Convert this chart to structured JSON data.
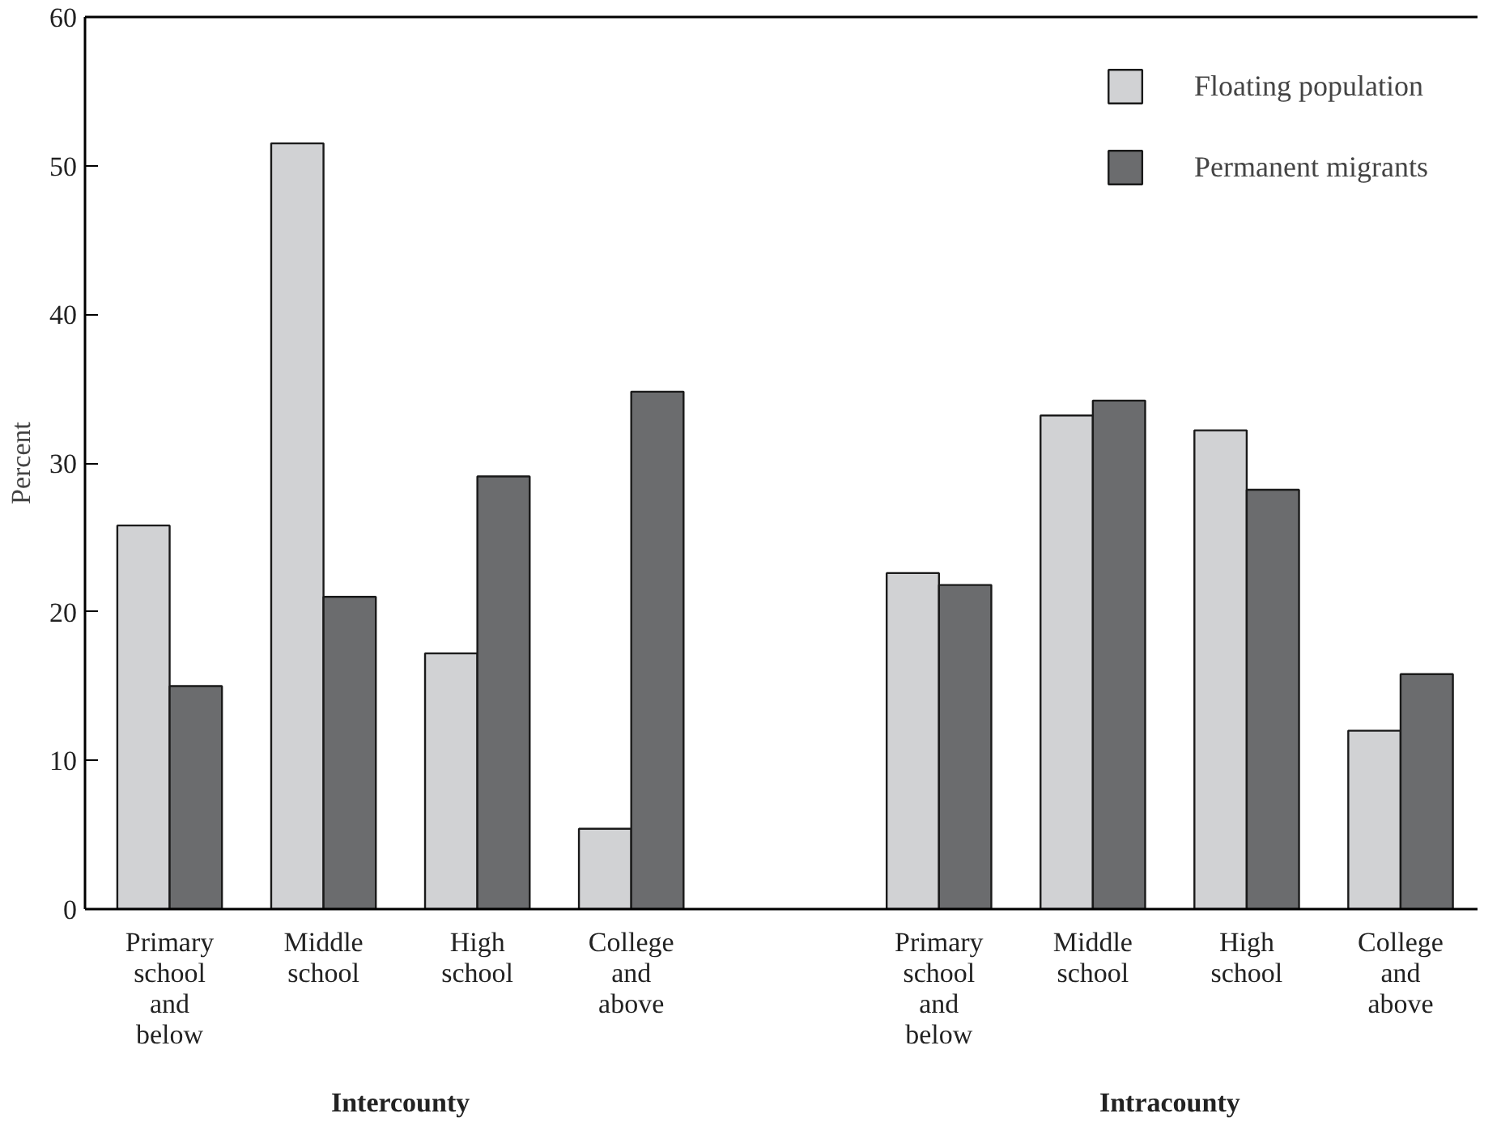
{
  "chart_data": {
    "type": "bar",
    "ylabel": "Percent",
    "categories": [
      "Primary school and below",
      "Middle school",
      "High school",
      "College and above",
      null,
      "Primary school and below",
      "Middle school",
      "High school",
      "College and above"
    ],
    "series": [
      {
        "name": "Floating population",
        "color": "#d1d2d4",
        "values": [
          25.8,
          51.5,
          17.2,
          5.4,
          null,
          22.6,
          33.2,
          32.2,
          12.0
        ]
      },
      {
        "name": "Permanent migrants",
        "color": "#6b6c6e",
        "values": [
          15.0,
          21.0,
          29.1,
          34.8,
          null,
          21.8,
          34.2,
          28.2,
          15.8
        ]
      }
    ],
    "annotations": [
      "Intercounty",
      "Intracounty"
    ],
    "ylim": [
      0,
      60
    ],
    "yticks": [
      0,
      10,
      20,
      30,
      40,
      50,
      60
    ],
    "grid": false,
    "legend": "top right"
  }
}
